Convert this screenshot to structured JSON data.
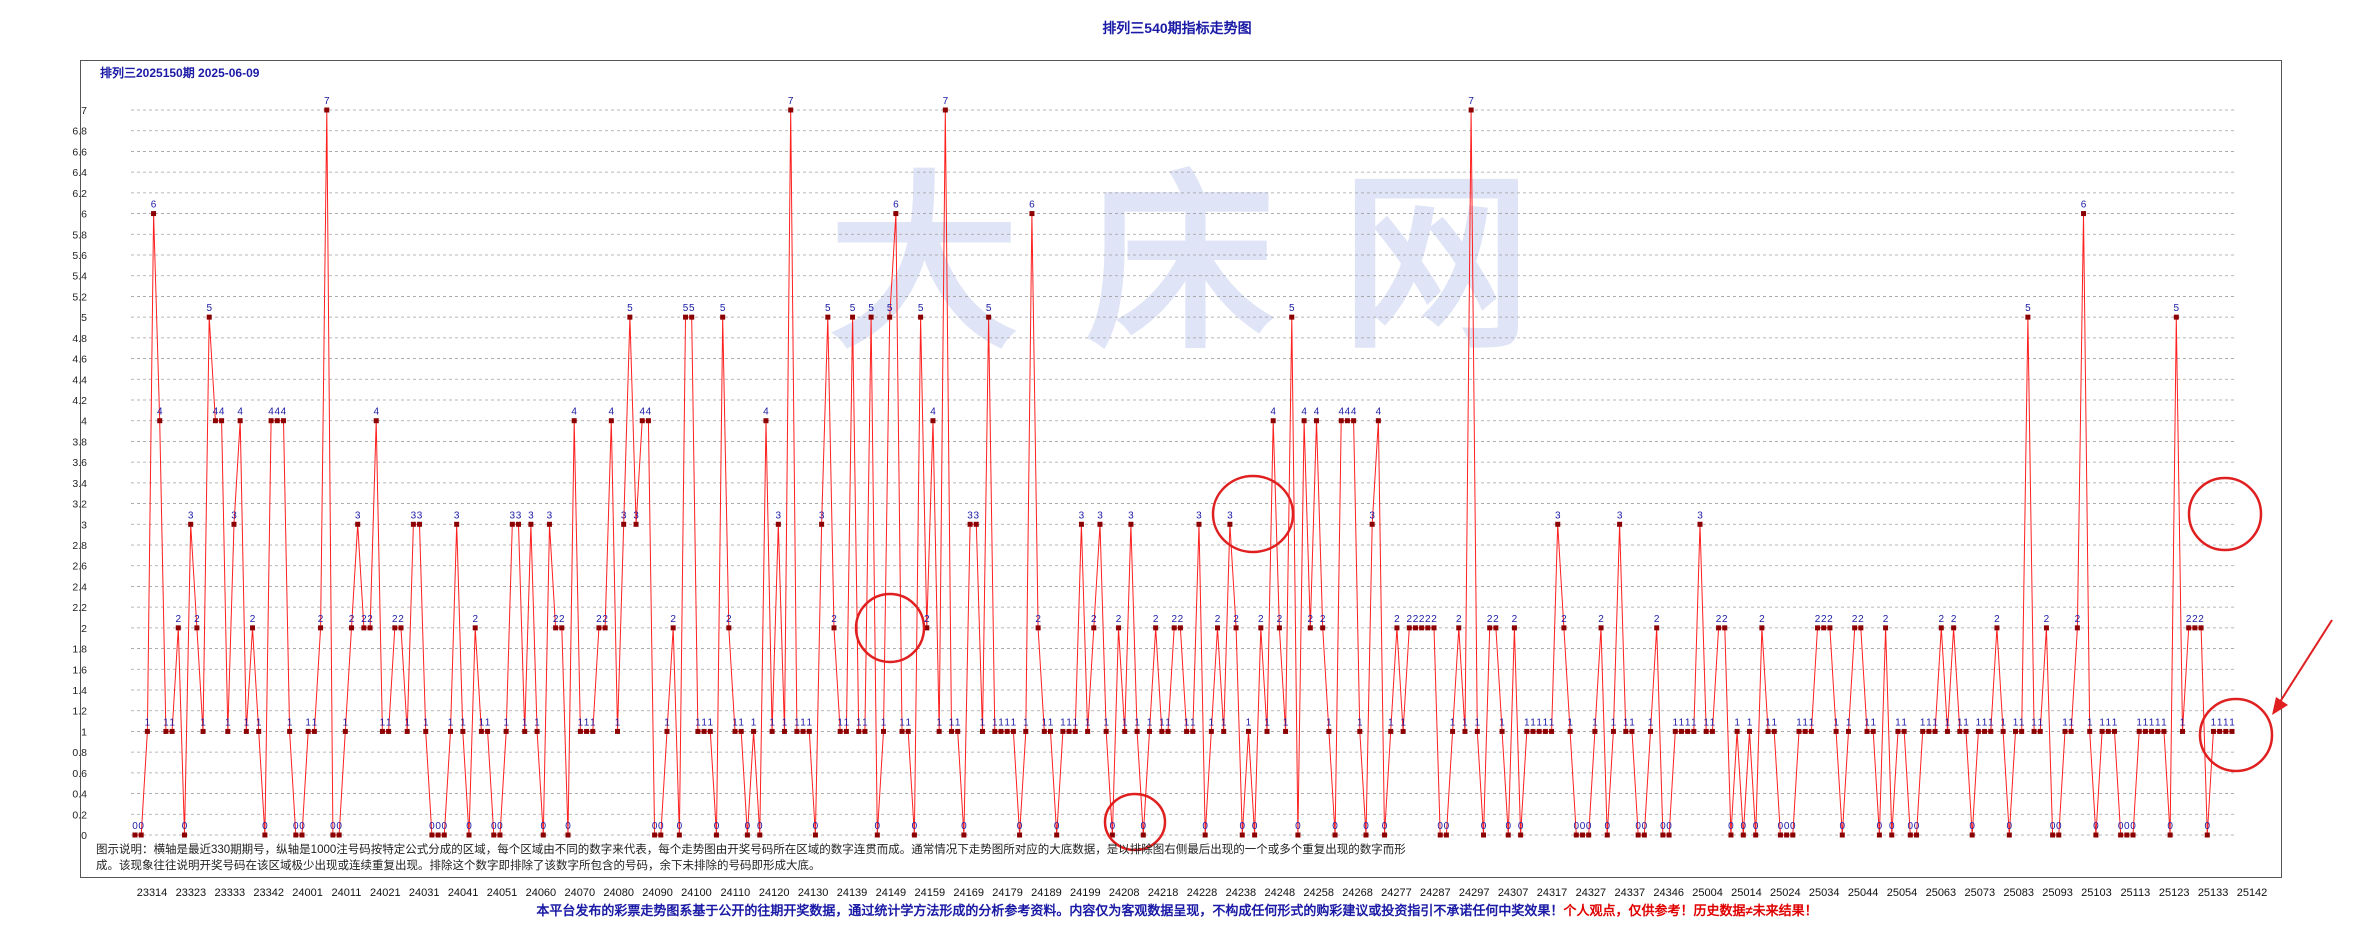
{
  "header": {
    "title": "排列三540期指标走势图",
    "period": "排列三2025150期  2025-06-09"
  },
  "description": {
    "line1": "图示说明：横轴是最近330期期号，纵轴是1000注号码按特定公式分成的区域，每个区域由不同的数字来代表，每个走势图由开奖号码所在区域的数字连贯而成。通常情况下走势图所对应的大底数据，是以排除图右侧最后出现的一个或多个重复出现的数字而形",
    "line2": "成。该现象往往说明开奖号码在该区域极少出现或连续重复出现。排除这个数字即排除了该数字所包含的号码，余下未排除的号码即形成大底。"
  },
  "disclaimer": {
    "main": "本平台发布的彩票走势图系基于公开的往期开奖数据，通过统计学方法形成的分析参考资料。内容仅为客观数据呈现，不构成任何形式的购彩建议或投资指引不承诺任何中奖效果！",
    "warn": "个人观点，仅供参考！历史数据≠未来结果！"
  },
  "watermark": {
    "text": "大 床 网"
  },
  "colors": {
    "line": "#ff2020",
    "point": "#8b0000",
    "label": "#1a1aa6",
    "grid": "#a0a0a0",
    "circle": "#e02020"
  },
  "chart_data": {
    "type": "line",
    "title": "排列三540期指标走势图",
    "xlabel": "",
    "ylabel": "",
    "ylim": [
      0,
      7
    ],
    "y_ticks": [
      "0",
      "0.2",
      "0.4",
      "0.6",
      "0.8",
      "1",
      "1.2",
      "1.4",
      "1.6",
      "1.8",
      "2",
      "2.2",
      "2.4",
      "2.6",
      "2.8",
      "3",
      "3.2",
      "3.4",
      "3.6",
      "3.8",
      "4",
      "4.2",
      "4.4",
      "4.6",
      "4.8",
      "5",
      "5.2",
      "5.4",
      "5.6",
      "5.8",
      "6",
      "6.2",
      "6.4",
      "6.6",
      "6.8",
      "7"
    ],
    "x_tick_labels": [
      "23314",
      "23323",
      "23333",
      "23342",
      "24001",
      "24011",
      "24021",
      "24031",
      "24041",
      "24051",
      "24060",
      "24070",
      "24080",
      "24090",
      "24100",
      "24110",
      "24120",
      "24130",
      "24139",
      "24149",
      "24159",
      "24169",
      "24179",
      "24189",
      "24199",
      "24208",
      "24218",
      "24228",
      "24238",
      "24248",
      "24258",
      "24268",
      "24277",
      "24287",
      "24297",
      "24307",
      "24317",
      "24327",
      "24337",
      "24346",
      "25004",
      "25014",
      "25024",
      "25034",
      "25044",
      "25054",
      "25063",
      "25073",
      "25083",
      "25093",
      "25103",
      "25113",
      "25123",
      "25133",
      "25142"
    ],
    "grid": true,
    "point_count": 330,
    "series": [
      {
        "values": [
          0,
          0,
          1,
          6,
          4,
          1,
          1,
          2,
          0,
          3,
          2,
          1,
          5,
          4,
          4,
          1,
          3,
          4,
          1,
          2,
          1,
          0,
          4,
          4,
          4,
          1,
          0,
          0,
          1,
          1,
          2,
          7,
          0,
          0,
          1,
          2,
          3,
          2,
          2,
          4,
          1,
          1,
          2,
          2,
          1,
          3,
          3,
          1,
          0,
          0,
          0,
          1,
          3,
          1,
          0,
          2,
          1,
          1,
          0,
          0,
          1,
          3,
          3,
          1,
          3,
          1,
          0,
          3,
          2,
          2,
          0,
          4,
          1,
          1,
          1,
          2,
          2,
          4,
          1,
          3,
          5,
          3,
          4,
          4,
          0,
          0,
          1,
          2,
          0,
          5,
          5,
          1,
          1,
          1,
          0,
          5,
          2,
          1,
          1,
          0,
          1,
          0,
          4,
          1,
          3,
          1,
          7,
          1,
          1,
          1,
          0,
          3,
          5,
          2,
          1,
          1,
          5,
          1,
          1,
          5,
          0,
          1,
          5,
          6,
          1,
          1,
          0,
          5,
          2,
          4,
          1,
          7,
          1,
          1,
          0,
          3,
          3,
          1,
          5,
          1,
          1,
          1,
          1,
          0,
          1,
          6,
          2,
          1,
          1,
          0,
          1,
          1,
          1,
          3,
          1,
          2,
          3,
          1,
          0,
          2,
          1,
          3,
          1,
          0,
          1,
          2,
          1,
          1,
          2,
          2,
          1,
          1,
          3,
          0,
          1,
          2,
          1,
          3,
          2,
          0,
          1,
          0,
          2,
          1,
          4,
          2,
          1,
          5,
          0,
          4,
          2,
          4,
          2,
          1,
          0,
          4,
          4,
          4,
          1,
          0,
          3,
          4,
          0,
          1,
          2,
          1,
          2,
          2,
          2,
          2,
          2,
          0,
          0,
          1,
          2,
          1,
          7,
          1,
          0,
          2,
          2,
          1,
          0,
          2,
          0,
          1,
          1,
          1,
          1,
          1,
          3,
          2,
          1,
          0,
          0,
          0,
          1,
          2,
          0,
          1,
          3,
          1,
          1,
          0,
          0,
          1,
          2,
          0,
          0,
          1,
          1,
          1,
          1,
          3,
          1,
          1,
          2,
          2,
          0,
          1,
          0,
          1,
          0,
          2,
          1,
          1,
          0,
          0,
          0,
          1,
          1,
          1,
          2,
          2,
          2,
          1,
          0,
          1,
          2,
          2,
          1,
          1,
          0,
          2,
          0,
          1,
          1,
          0,
          0,
          1,
          1,
          1,
          2,
          1,
          2,
          1,
          1,
          0,
          1,
          1,
          1,
          2,
          1,
          0,
          1,
          1,
          5,
          1,
          1,
          2,
          0,
          0,
          1,
          1,
          2,
          6,
          1,
          0,
          1,
          1,
          1,
          0,
          0,
          0,
          1,
          1,
          1,
          1,
          1,
          0,
          5,
          1,
          2,
          2,
          2,
          0,
          1,
          1,
          1,
          1
        ]
      }
    ],
    "annotations": [
      "circle: 2222",
      "circle: 0000",
      "circle: 3333",
      "circle: 3333",
      "circle: 1111 with arrow"
    ]
  }
}
